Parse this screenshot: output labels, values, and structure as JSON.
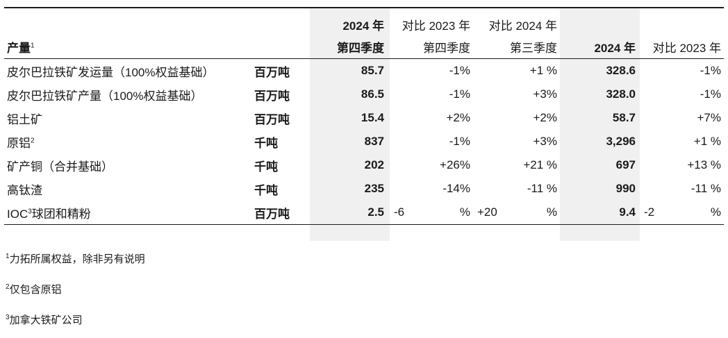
{
  "header": {
    "product_label": "产量",
    "product_sup": "1",
    "q4_2024_line1": "2024 年",
    "q4_2024_line2": "第四季度",
    "vs_q4_2023_line1": "对比 2023 年",
    "vs_q4_2023_line2": "第四季度",
    "vs_q3_2024_line1": "对比 2024 年",
    "vs_q3_2024_line2": "第三季度",
    "year_2024": "2024 年",
    "vs_2023": "对比 2023 年"
  },
  "rows": [
    {
      "label": "皮尔巴拉铁矿发运量（100%权益基础）",
      "sup": "",
      "unit": "百万吨",
      "q4": "85.7",
      "vs_q4": "-1%",
      "vs_q3": "+1 %",
      "year": "328.6",
      "vs_year": "-1%"
    },
    {
      "label": "皮尔巴拉铁矿产量（100%权益基础）",
      "sup": "",
      "unit": "百万吨",
      "q4": "86.5",
      "vs_q4": "-1%",
      "vs_q3": "+3%",
      "year": "328.0",
      "vs_year": "-1%"
    },
    {
      "label": "铝土矿",
      "sup": "",
      "unit": "百万吨",
      "q4": "15.4",
      "vs_q4": "+2%",
      "vs_q3": "+2%",
      "year": "58.7",
      "vs_year": "+7%"
    },
    {
      "label": "原铝",
      "sup": "2",
      "unit": "千吨",
      "q4": "837",
      "vs_q4": "-1%",
      "vs_q3": "+3%",
      "year": "3,296",
      "vs_year": "+1 %"
    },
    {
      "label": "矿产铜（合并基础）",
      "sup": "",
      "unit": "千吨",
      "q4": "202",
      "vs_q4": "+26%",
      "vs_q3": "+21 %",
      "year": "697",
      "vs_year": "+13 %"
    },
    {
      "label": "高钛渣",
      "sup": "",
      "unit": "千吨",
      "q4": "235",
      "vs_q4": "-14%",
      "vs_q3": "-11 %",
      "year": "990",
      "vs_year": "-11 %"
    }
  ],
  "last_row": {
    "label_pre": "IOC",
    "sup": "3",
    "label_post": "球团和精粉",
    "unit": "百万吨",
    "q4": "2.5",
    "vs_q4_num": "-6",
    "vs_q4_pct": "%",
    "vs_q3_num": "+20",
    "vs_q3_pct": "%",
    "year": "9.4",
    "vs_year_num": "-2",
    "vs_year_pct": "%"
  },
  "notes": [
    {
      "sup": "1",
      "text": "力拓所属权益，除非另有说明"
    },
    {
      "sup": "2",
      "text": "仅包含原铝"
    },
    {
      "sup": "3",
      "text": "加拿大铁矿公司"
    }
  ]
}
